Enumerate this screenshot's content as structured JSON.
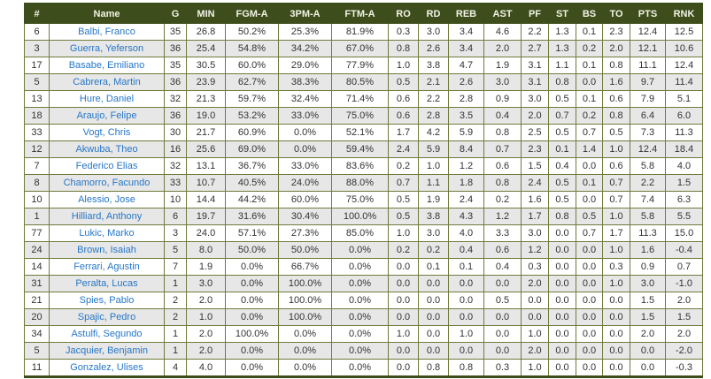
{
  "table": {
    "columns": [
      {
        "key": "num",
        "label": "#"
      },
      {
        "key": "name",
        "label": "Name"
      },
      {
        "key": "g",
        "label": "G"
      },
      {
        "key": "min",
        "label": "MIN"
      },
      {
        "key": "fgma",
        "label": "FGM-A"
      },
      {
        "key": "pm3a",
        "label": "3PM-A"
      },
      {
        "key": "ftma",
        "label": "FTM-A"
      },
      {
        "key": "ro",
        "label": "RO"
      },
      {
        "key": "rd",
        "label": "RD"
      },
      {
        "key": "reb",
        "label": "REB"
      },
      {
        "key": "ast",
        "label": "AST"
      },
      {
        "key": "pf",
        "label": "PF"
      },
      {
        "key": "st",
        "label": "ST"
      },
      {
        "key": "bs",
        "label": "BS"
      },
      {
        "key": "to",
        "label": "TO"
      },
      {
        "key": "pts",
        "label": "PTS"
      },
      {
        "key": "rnk",
        "label": "RNK"
      }
    ],
    "players": [
      {
        "num": "6",
        "name": "Balbi, Franco",
        "g": "35",
        "min": "26.8",
        "fgma": "50.2%",
        "pm3a": "25.3%",
        "ftma": "81.9%",
        "ro": "0.3",
        "rd": "3.0",
        "reb": "3.4",
        "ast": "4.6",
        "pf": "2.2",
        "st": "1.3",
        "bs": "0.1",
        "to": "2.3",
        "pts": "12.4",
        "rnk": "12.5"
      },
      {
        "num": "3",
        "name": "Guerra, Yeferson",
        "g": "36",
        "min": "25.4",
        "fgma": "54.8%",
        "pm3a": "34.2%",
        "ftma": "67.0%",
        "ro": "0.8",
        "rd": "2.6",
        "reb": "3.4",
        "ast": "2.0",
        "pf": "2.7",
        "st": "1.3",
        "bs": "0.2",
        "to": "2.0",
        "pts": "12.1",
        "rnk": "10.6"
      },
      {
        "num": "17",
        "name": "Basabe, Emiliano",
        "g": "35",
        "min": "30.5",
        "fgma": "60.0%",
        "pm3a": "29.0%",
        "ftma": "77.9%",
        "ro": "1.0",
        "rd": "3.8",
        "reb": "4.7",
        "ast": "1.9",
        "pf": "3.1",
        "st": "1.1",
        "bs": "0.1",
        "to": "0.8",
        "pts": "11.1",
        "rnk": "12.4"
      },
      {
        "num": "5",
        "name": "Cabrera, Martin",
        "g": "36",
        "min": "23.9",
        "fgma": "62.7%",
        "pm3a": "38.3%",
        "ftma": "80.5%",
        "ro": "0.5",
        "rd": "2.1",
        "reb": "2.6",
        "ast": "3.0",
        "pf": "3.1",
        "st": "0.8",
        "bs": "0.0",
        "to": "1.6",
        "pts": "9.7",
        "rnk": "11.4"
      },
      {
        "num": "13",
        "name": "Hure, Daniel",
        "g": "32",
        "min": "21.3",
        "fgma": "59.7%",
        "pm3a": "32.4%",
        "ftma": "71.4%",
        "ro": "0.6",
        "rd": "2.2",
        "reb": "2.8",
        "ast": "0.9",
        "pf": "3.0",
        "st": "0.5",
        "bs": "0.1",
        "to": "0.6",
        "pts": "7.9",
        "rnk": "5.1"
      },
      {
        "num": "18",
        "name": "Araujo, Felipe",
        "g": "36",
        "min": "19.0",
        "fgma": "53.2%",
        "pm3a": "33.0%",
        "ftma": "75.0%",
        "ro": "0.6",
        "rd": "2.8",
        "reb": "3.5",
        "ast": "0.4",
        "pf": "2.0",
        "st": "0.7",
        "bs": "0.2",
        "to": "0.8",
        "pts": "6.4",
        "rnk": "6.0"
      },
      {
        "num": "33",
        "name": "Vogt, Chris",
        "g": "30",
        "min": "21.7",
        "fgma": "60.9%",
        "pm3a": "0.0%",
        "ftma": "52.1%",
        "ro": "1.7",
        "rd": "4.2",
        "reb": "5.9",
        "ast": "0.8",
        "pf": "2.5",
        "st": "0.5",
        "bs": "0.7",
        "to": "0.5",
        "pts": "7.3",
        "rnk": "11.3"
      },
      {
        "num": "12",
        "name": "Akwuba, Theo",
        "g": "16",
        "min": "25.6",
        "fgma": "69.0%",
        "pm3a": "0.0%",
        "ftma": "59.4%",
        "ro": "2.4",
        "rd": "5.9",
        "reb": "8.4",
        "ast": "0.7",
        "pf": "2.3",
        "st": "0.1",
        "bs": "1.4",
        "to": "1.0",
        "pts": "12.4",
        "rnk": "18.4"
      },
      {
        "num": "7",
        "name": "Federico Elias",
        "g": "32",
        "min": "13.1",
        "fgma": "36.7%",
        "pm3a": "33.0%",
        "ftma": "83.6%",
        "ro": "0.2",
        "rd": "1.0",
        "reb": "1.2",
        "ast": "0.6",
        "pf": "1.5",
        "st": "0.4",
        "bs": "0.0",
        "to": "0.6",
        "pts": "5.8",
        "rnk": "4.0"
      },
      {
        "num": "8",
        "name": "Chamorro, Facundo",
        "g": "33",
        "min": "10.7",
        "fgma": "40.5%",
        "pm3a": "24.0%",
        "ftma": "88.0%",
        "ro": "0.7",
        "rd": "1.1",
        "reb": "1.8",
        "ast": "0.8",
        "pf": "2.4",
        "st": "0.5",
        "bs": "0.1",
        "to": "0.7",
        "pts": "2.2",
        "rnk": "1.5"
      },
      {
        "num": "10",
        "name": "Alessio, Jose",
        "g": "10",
        "min": "14.4",
        "fgma": "44.2%",
        "pm3a": "60.0%",
        "ftma": "75.0%",
        "ro": "0.5",
        "rd": "1.9",
        "reb": "2.4",
        "ast": "0.2",
        "pf": "1.6",
        "st": "0.5",
        "bs": "0.0",
        "to": "0.7",
        "pts": "7.4",
        "rnk": "6.3"
      },
      {
        "num": "1",
        "name": "Hilliard, Anthony",
        "g": "6",
        "min": "19.7",
        "fgma": "31.6%",
        "pm3a": "30.4%",
        "ftma": "100.0%",
        "ro": "0.5",
        "rd": "3.8",
        "reb": "4.3",
        "ast": "1.2",
        "pf": "1.7",
        "st": "0.8",
        "bs": "0.5",
        "to": "1.0",
        "pts": "5.8",
        "rnk": "5.5"
      },
      {
        "num": "77",
        "name": "Lukic, Marko",
        "g": "3",
        "min": "24.0",
        "fgma": "57.1%",
        "pm3a": "27.3%",
        "ftma": "85.0%",
        "ro": "1.0",
        "rd": "3.0",
        "reb": "4.0",
        "ast": "3.3",
        "pf": "3.0",
        "st": "0.0",
        "bs": "0.7",
        "to": "1.7",
        "pts": "11.3",
        "rnk": "15.0"
      },
      {
        "num": "24",
        "name": "Brown, Isaiah",
        "g": "5",
        "min": "8.0",
        "fgma": "50.0%",
        "pm3a": "50.0%",
        "ftma": "0.0%",
        "ro": "0.2",
        "rd": "0.2",
        "reb": "0.4",
        "ast": "0.6",
        "pf": "1.2",
        "st": "0.0",
        "bs": "0.0",
        "to": "1.0",
        "pts": "1.6",
        "rnk": "-0.4"
      },
      {
        "num": "14",
        "name": "Ferrari, Agustin",
        "g": "7",
        "min": "1.9",
        "fgma": "0.0%",
        "pm3a": "66.7%",
        "ftma": "0.0%",
        "ro": "0.0",
        "rd": "0.1",
        "reb": "0.1",
        "ast": "0.4",
        "pf": "0.3",
        "st": "0.0",
        "bs": "0.0",
        "to": "0.3",
        "pts": "0.9",
        "rnk": "0.7"
      },
      {
        "num": "31",
        "name": "Peralta, Lucas",
        "g": "1",
        "min": "3.0",
        "fgma": "0.0%",
        "pm3a": "100.0%",
        "ftma": "0.0%",
        "ro": "0.0",
        "rd": "0.0",
        "reb": "0.0",
        "ast": "0.0",
        "pf": "2.0",
        "st": "0.0",
        "bs": "0.0",
        "to": "1.0",
        "pts": "3.0",
        "rnk": "-1.0"
      },
      {
        "num": "21",
        "name": "Spies, Pablo",
        "g": "2",
        "min": "2.0",
        "fgma": "0.0%",
        "pm3a": "100.0%",
        "ftma": "0.0%",
        "ro": "0.0",
        "rd": "0.0",
        "reb": "0.0",
        "ast": "0.5",
        "pf": "0.0",
        "st": "0.0",
        "bs": "0.0",
        "to": "0.0",
        "pts": "1.5",
        "rnk": "2.0"
      },
      {
        "num": "20",
        "name": "Spajic, Pedro",
        "g": "2",
        "min": "1.0",
        "fgma": "0.0%",
        "pm3a": "100.0%",
        "ftma": "0.0%",
        "ro": "0.0",
        "rd": "0.0",
        "reb": "0.0",
        "ast": "0.0",
        "pf": "0.0",
        "st": "0.0",
        "bs": "0.0",
        "to": "0.0",
        "pts": "1.5",
        "rnk": "1.5"
      },
      {
        "num": "34",
        "name": "Astulfi, Segundo",
        "g": "1",
        "min": "2.0",
        "fgma": "100.0%",
        "pm3a": "0.0%",
        "ftma": "0.0%",
        "ro": "1.0",
        "rd": "0.0",
        "reb": "1.0",
        "ast": "0.0",
        "pf": "1.0",
        "st": "0.0",
        "bs": "0.0",
        "to": "0.0",
        "pts": "2.0",
        "rnk": "2.0"
      },
      {
        "num": "5",
        "name": "Jacquier, Benjamin",
        "g": "1",
        "min": "2.0",
        "fgma": "0.0%",
        "pm3a": "0.0%",
        "ftma": "0.0%",
        "ro": "0.0",
        "rd": "0.0",
        "reb": "0.0",
        "ast": "0.0",
        "pf": "2.0",
        "st": "0.0",
        "bs": "0.0",
        "to": "0.0",
        "pts": "0.0",
        "rnk": "-2.0"
      },
      {
        "num": "11",
        "name": "Gonzalez, Ulises",
        "g": "4",
        "min": "4.0",
        "fgma": "0.0%",
        "pm3a": "0.0%",
        "ftma": "0.0%",
        "ro": "0.0",
        "rd": "0.8",
        "reb": "0.8",
        "ast": "0.3",
        "pf": "1.0",
        "st": "0.0",
        "bs": "0.0",
        "to": "0.0",
        "pts": "0.0",
        "rnk": "-0.3"
      }
    ]
  },
  "colors": {
    "header_bg": "#3D4E1C",
    "header_text": "#F2F2E4",
    "border": "#6E7B3C",
    "alt_row_bg": "#E7E7E7",
    "link_blue": "#2577C8",
    "cell_text": "#333333"
  }
}
